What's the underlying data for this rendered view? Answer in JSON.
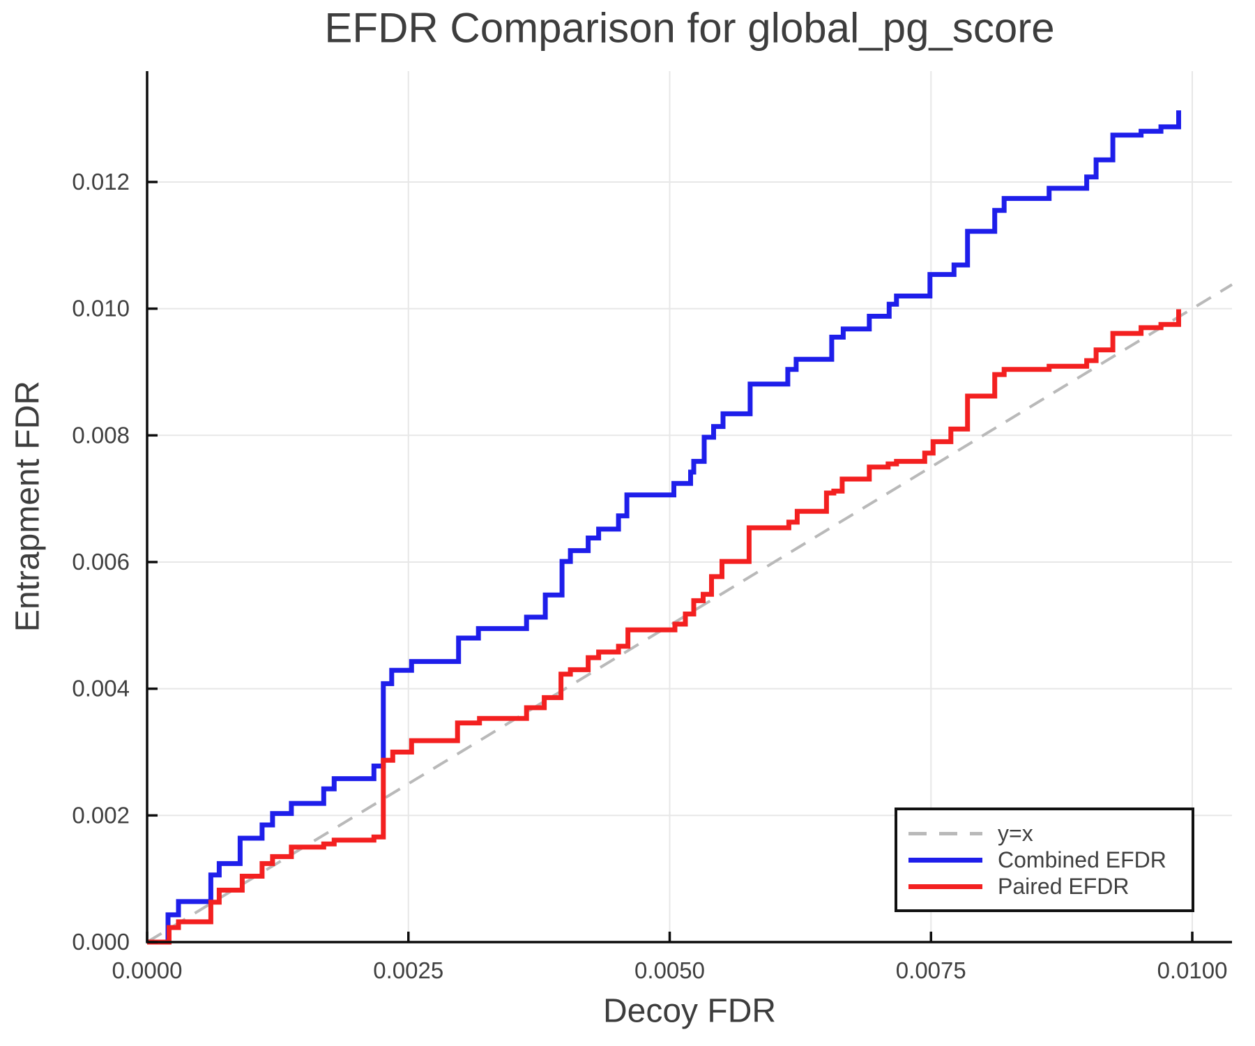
{
  "chart_data": {
    "type": "line",
    "title": "EFDR Comparison for global_pg_score",
    "xlabel": "Decoy FDR",
    "ylabel": "Entrapment FDR",
    "xlim": [
      0,
      0.01038
    ],
    "ylim": [
      0,
      0.01375
    ],
    "grid": true,
    "legend_position": "lower right",
    "x_ticks": [
      {
        "label": "0.0000",
        "value": 0.0
      },
      {
        "label": "0.0025",
        "value": 0.0025
      },
      {
        "label": "0.0050",
        "value": 0.005
      },
      {
        "label": "0.0075",
        "value": 0.0075
      },
      {
        "label": "0.0100",
        "value": 0.01
      }
    ],
    "y_ticks": [
      {
        "label": "0.000",
        "value": 0.0
      },
      {
        "label": "0.002",
        "value": 0.002
      },
      {
        "label": "0.004",
        "value": 0.004
      },
      {
        "label": "0.006",
        "value": 0.006
      },
      {
        "label": "0.008",
        "value": 0.008
      },
      {
        "label": "0.010",
        "value": 0.01
      },
      {
        "label": "0.012",
        "value": 0.012
      }
    ],
    "legend": [
      {
        "label": "y=x",
        "color": "#b9b9b9",
        "dash": true
      },
      {
        "label": "Combined EFDR",
        "color": "#1e1eea",
        "dash": false
      },
      {
        "label": "Paired EFDR",
        "color": "#f32020",
        "dash": false
      }
    ],
    "identity_line": {
      "name": "y=x",
      "points": [
        [
          0,
          0
        ],
        [
          0.01038,
          0.01038
        ]
      ],
      "color": "#b9b9b9",
      "style": "dashed"
    },
    "series": [
      {
        "name": "Combined EFDR",
        "color": "#1e1eea",
        "interpolation": "step-rise",
        "points": [
          [
            0.0002,
            0.00043
          ],
          [
            0.0003,
            0.00064
          ],
          [
            0.00061,
            0.00106
          ],
          [
            0.00069,
            0.00124
          ],
          [
            0.00089,
            0.00164
          ],
          [
            0.0011,
            0.00185
          ],
          [
            0.0012,
            0.00203
          ],
          [
            0.00138,
            0.00219
          ],
          [
            0.00169,
            0.00242
          ],
          [
            0.00179,
            0.00258
          ],
          [
            0.00217,
            0.00278
          ],
          [
            0.00226,
            0.00408
          ],
          [
            0.00234,
            0.00429
          ],
          [
            0.00253,
            0.00443
          ],
          [
            0.00298,
            0.0048
          ],
          [
            0.00317,
            0.00495
          ],
          [
            0.00363,
            0.00513
          ],
          [
            0.00381,
            0.00548
          ],
          [
            0.00397,
            0.00601
          ],
          [
            0.00405,
            0.00618
          ],
          [
            0.00422,
            0.00638
          ],
          [
            0.00432,
            0.00652
          ],
          [
            0.00451,
            0.00673
          ],
          [
            0.00459,
            0.00706
          ],
          [
            0.00504,
            0.00724
          ],
          [
            0.0052,
            0.00742
          ],
          [
            0.00523,
            0.00759
          ],
          [
            0.00533,
            0.00797
          ],
          [
            0.00542,
            0.00814
          ],
          [
            0.00551,
            0.00834
          ],
          [
            0.00577,
            0.00881
          ],
          [
            0.00613,
            0.00904
          ],
          [
            0.00621,
            0.0092
          ],
          [
            0.00655,
            0.00955
          ],
          [
            0.00666,
            0.00968
          ],
          [
            0.00691,
            0.00988
          ],
          [
            0.0071,
            0.01007
          ],
          [
            0.00717,
            0.0102
          ],
          [
            0.00749,
            0.01054
          ],
          [
            0.00772,
            0.01069
          ],
          [
            0.00785,
            0.01122
          ],
          [
            0.00811,
            0.01155
          ],
          [
            0.0082,
            0.01174
          ],
          [
            0.00863,
            0.0119
          ],
          [
            0.00899,
            0.01208
          ],
          [
            0.00908,
            0.01235
          ],
          [
            0.00924,
            0.01274
          ],
          [
            0.00951,
            0.0128
          ],
          [
            0.0097,
            0.01287
          ],
          [
            0.00987,
            0.01294
          ],
          [
            0.00987,
            0.01313
          ]
        ]
      },
      {
        "name": "Paired EFDR",
        "color": "#f32020",
        "interpolation": "step-rise",
        "points": [
          [
            0.00021,
            0.00023
          ],
          [
            0.0003,
            0.00032
          ],
          [
            0.00061,
            0.00063
          ],
          [
            0.00069,
            0.00082
          ],
          [
            0.00091,
            0.00104
          ],
          [
            0.0011,
            0.00124
          ],
          [
            0.0012,
            0.00135
          ],
          [
            0.00138,
            0.0015
          ],
          [
            0.00169,
            0.00155
          ],
          [
            0.00179,
            0.00161
          ],
          [
            0.00217,
            0.00166
          ],
          [
            0.00226,
            0.00287
          ],
          [
            0.00235,
            0.003
          ],
          [
            0.00253,
            0.00318
          ],
          [
            0.00297,
            0.00346
          ],
          [
            0.00318,
            0.00353
          ],
          [
            0.00363,
            0.0037
          ],
          [
            0.0038,
            0.00386
          ],
          [
            0.00396,
            0.00423
          ],
          [
            0.00405,
            0.0043
          ],
          [
            0.00422,
            0.00449
          ],
          [
            0.00432,
            0.00458
          ],
          [
            0.00451,
            0.00467
          ],
          [
            0.0046,
            0.00493
          ],
          [
            0.00505,
            0.00502
          ],
          [
            0.00515,
            0.00518
          ],
          [
            0.00523,
            0.00539
          ],
          [
            0.00532,
            0.00549
          ],
          [
            0.0054,
            0.00577
          ],
          [
            0.0055,
            0.00601
          ],
          [
            0.00576,
            0.00654
          ],
          [
            0.00614,
            0.00663
          ],
          [
            0.00622,
            0.0068
          ],
          [
            0.0065,
            0.00709
          ],
          [
            0.00657,
            0.00712
          ],
          [
            0.00665,
            0.00731
          ],
          [
            0.00691,
            0.0075
          ],
          [
            0.00709,
            0.00755
          ],
          [
            0.00717,
            0.00759
          ],
          [
            0.00744,
            0.00772
          ],
          [
            0.00752,
            0.0079
          ],
          [
            0.00769,
            0.0081
          ],
          [
            0.00785,
            0.00862
          ],
          [
            0.00811,
            0.00896
          ],
          [
            0.0082,
            0.00904
          ],
          [
            0.00863,
            0.00909
          ],
          [
            0.00899,
            0.00918
          ],
          [
            0.00908,
            0.00935
          ],
          [
            0.00924,
            0.00961
          ],
          [
            0.00951,
            0.0097
          ],
          [
            0.0097,
            0.00975
          ],
          [
            0.00987,
            0.00979
          ],
          [
            0.00987,
            0.00999
          ]
        ]
      }
    ],
    "colors": {
      "grid": "#e7e7e7",
      "spine": "#0d0d0d",
      "tick_text": "#3f3f3f",
      "background": "#ffffff"
    }
  }
}
